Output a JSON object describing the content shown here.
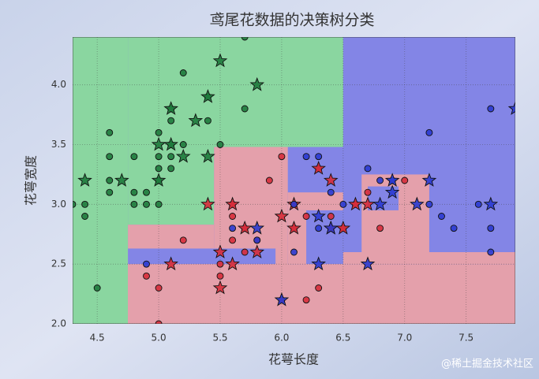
{
  "chart_data": {
    "type": "scatter",
    "title": "鸢尾花数据的决策树分类",
    "xlabel": "花萼长度",
    "ylabel": "花萼宽度",
    "watermark": "@稀土掘金技术社区",
    "xlim": [
      4.3,
      7.9
    ],
    "ylim": [
      2.0,
      4.4
    ],
    "xticks": [
      4.5,
      {
        "value": 5,
        "label": "5.0"
      },
      5.5,
      {
        "value": 6,
        "label": "6.0"
      },
      6.5,
      {
        "value": 7,
        "label": "7.0"
      },
      7.5
    ],
    "yticks": [
      {
        "value": 2,
        "label": "2.0"
      },
      2.5,
      {
        "value": 3,
        "label": "3.0"
      },
      3.5,
      {
        "value": 4,
        "label": "4.0"
      }
    ],
    "grid": true,
    "regions": [
      {
        "x": [
          4.3,
          7.9
        ],
        "y": [
          2.0,
          4.4
        ],
        "color": "#8385e6"
      },
      {
        "x": [
          4.3,
          4.75
        ],
        "y": [
          2.0,
          4.4
        ],
        "color": "#8ad6a0"
      },
      {
        "x": [
          4.75,
          6.5
        ],
        "y": [
          3.48,
          4.4
        ],
        "color": "#8ad6a0"
      },
      {
        "x": [
          4.75,
          5.45
        ],
        "y": [
          2.83,
          3.48
        ],
        "color": "#8ad6a0"
      },
      {
        "x": [
          5.45,
          6.05
        ],
        "y": [
          2.0,
          3.48
        ],
        "color": "#e4a0ab"
      },
      {
        "x": [
          4.75,
          5.45
        ],
        "y": [
          2.0,
          2.83
        ],
        "color": "#e4a0ab"
      },
      {
        "x": [
          4.75,
          7.9
        ],
        "y": [
          2.0,
          2.5
        ],
        "color": "#e4a0ab"
      },
      {
        "x": [
          6.05,
          6.5
        ],
        "y": [
          2.95,
          3.1
        ],
        "color": "#e4a0ab"
      },
      {
        "x": [
          4.75,
          5.95
        ],
        "y": [
          2.5,
          2.63
        ],
        "color": "#8385e6"
      },
      {
        "x": [
          6.05,
          6.2
        ],
        "y": [
          2.5,
          2.95
        ],
        "color": "#e4a0ab"
      },
      {
        "x": [
          6.5,
          7.9
        ],
        "y": [
          2.5,
          2.6
        ],
        "color": "#e4a0ab"
      },
      {
        "x": [
          6.65,
          7.2
        ],
        "y": [
          2.6,
          3.25
        ],
        "color": "#e4a0ab"
      },
      {
        "x": [
          6.7,
          6.95
        ],
        "y": [
          2.95,
          3.15
        ],
        "color": "#8385e6"
      }
    ],
    "series": [
      {
        "marker": "circle",
        "color": "#1e7a3c",
        "x": [
          4.4,
          4.4,
          4.5,
          4.6,
          4.6,
          4.6,
          4.6,
          4.8,
          4.8,
          4.8,
          4.9,
          4.9,
          5.0,
          5.0,
          5.0,
          5.0,
          5.0,
          5.1,
          5.1,
          5.1,
          5.1,
          5.2,
          5.2,
          5.4,
          5.4,
          5.5,
          5.7,
          5.7,
          4.3,
          5.1
        ],
        "values": [
          2.9,
          3.0,
          2.3,
          3.1,
          3.2,
          3.4,
          3.6,
          3.0,
          3.1,
          3.4,
          3.0,
          3.1,
          3.0,
          3.2,
          3.3,
          3.4,
          3.6,
          3.3,
          3.4,
          3.7,
          3.8,
          3.5,
          4.1,
          3.7,
          3.9,
          3.5,
          3.8,
          4.4,
          3.0,
          3.5
        ]
      },
      {
        "marker": "star",
        "color": "#1e7a3c",
        "x": [
          4.4,
          4.7,
          5.0,
          5.0,
          5.1,
          5.1,
          5.2,
          5.3,
          5.4,
          5.4,
          5.5,
          5.8
        ],
        "values": [
          3.2,
          3.2,
          3.2,
          3.5,
          3.5,
          3.8,
          3.4,
          3.7,
          3.4,
          3.9,
          4.2,
          4.0
        ]
      },
      {
        "marker": "circle",
        "color": "#d62c3a",
        "x": [
          5.0,
          4.9,
          5.0,
          5.2,
          5.5,
          5.5,
          5.6,
          5.6,
          5.7,
          5.7,
          5.8,
          5.9,
          6.0,
          6.0,
          6.1,
          6.2,
          6.3,
          6.4,
          6.5,
          6.7,
          6.8,
          7.0,
          6.6,
          5.6,
          6.2,
          6.3
        ],
        "values": [
          2.0,
          2.4,
          2.3,
          2.7,
          2.4,
          2.5,
          2.9,
          3.0,
          2.6,
          2.8,
          2.7,
          3.2,
          2.2,
          3.4,
          2.8,
          2.2,
          2.3,
          2.9,
          2.8,
          3.1,
          2.8,
          3.2,
          3.0,
          2.7,
          2.9,
          3.3
        ]
      },
      {
        "marker": "star",
        "color": "#d62c3a",
        "x": [
          5.1,
          5.4,
          5.5,
          5.5,
          5.6,
          5.6,
          5.7,
          5.8,
          6.0,
          6.1,
          6.1,
          6.3,
          6.4,
          6.4,
          6.6,
          6.7,
          6.5
        ],
        "values": [
          2.5,
          3.0,
          2.3,
          2.6,
          2.5,
          3.0,
          2.8,
          2.6,
          2.9,
          2.8,
          3.0,
          3.3,
          3.2,
          2.8,
          3.0,
          3.0,
          2.8
        ]
      },
      {
        "marker": "circle",
        "color": "#2a3ad0",
        "x": [
          4.9,
          5.8,
          6.1,
          6.2,
          6.3,
          6.4,
          6.5,
          6.7,
          6.9,
          7.2,
          7.2,
          7.3,
          7.4,
          7.6,
          7.7,
          7.7,
          7.7,
          6.8,
          6.1,
          6.3,
          5.6
        ],
        "values": [
          2.5,
          2.7,
          2.6,
          3.4,
          3.4,
          3.1,
          3.0,
          3.3,
          3.2,
          3.6,
          3.0,
          2.9,
          2.8,
          3.0,
          3.8,
          2.6,
          2.8,
          3.2,
          3.0,
          2.8,
          2.8
        ]
      },
      {
        "marker": "star",
        "color": "#2a3ad0",
        "x": [
          5.8,
          6.0,
          6.3,
          6.3,
          6.4,
          6.7,
          6.8,
          6.9,
          6.9,
          7.1,
          7.2,
          7.7,
          7.9
        ],
        "values": [
          2.8,
          2.2,
          2.5,
          2.9,
          2.8,
          2.5,
          3.0,
          3.1,
          3.2,
          3.0,
          3.2,
          3.0,
          3.8
        ]
      }
    ]
  }
}
